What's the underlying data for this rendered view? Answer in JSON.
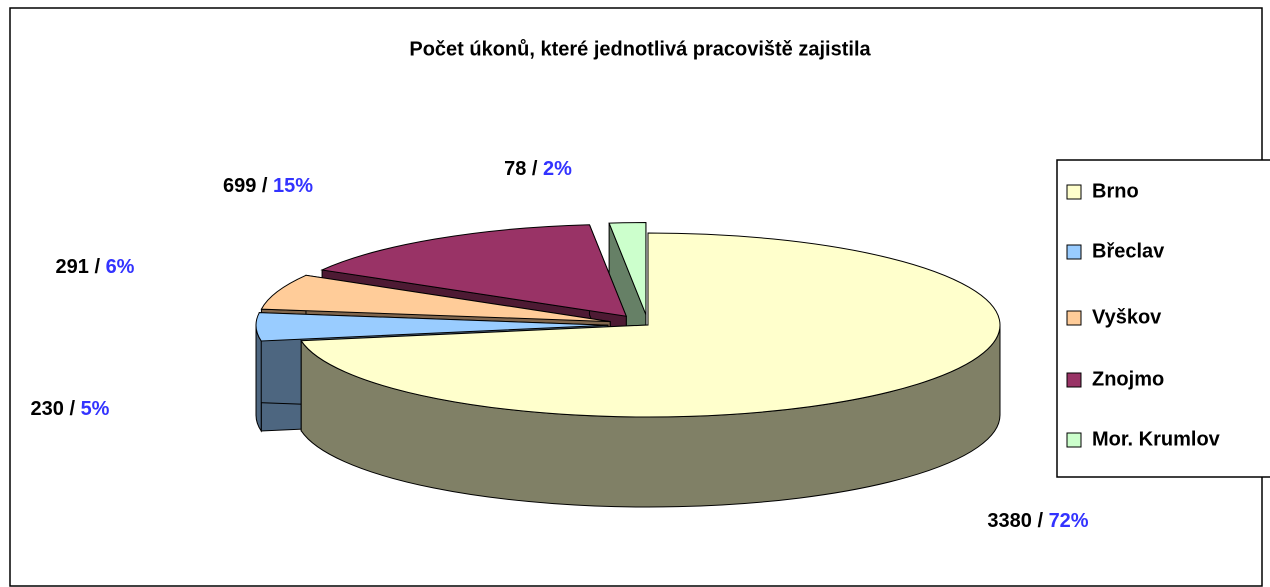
{
  "chart_data": {
    "type": "pie",
    "title": "Počet úkonů, které jednotlivá pracoviště zajistila",
    "categories": [
      "Brno",
      "Břeclav",
      "Vyškov",
      "Znojmo",
      "Mor. Krumlov"
    ],
    "values": [
      3380,
      230,
      291,
      699,
      78
    ],
    "value_labels": [
      "3380 / 72%",
      "230 / 5%",
      "291 / 6%",
      "699 / 15%",
      "78 / 2%"
    ],
    "colors": [
      "#ffffcc",
      "#99ccff",
      "#ffcc99",
      "#993366",
      "#ccffcc"
    ],
    "legend": "right"
  }
}
